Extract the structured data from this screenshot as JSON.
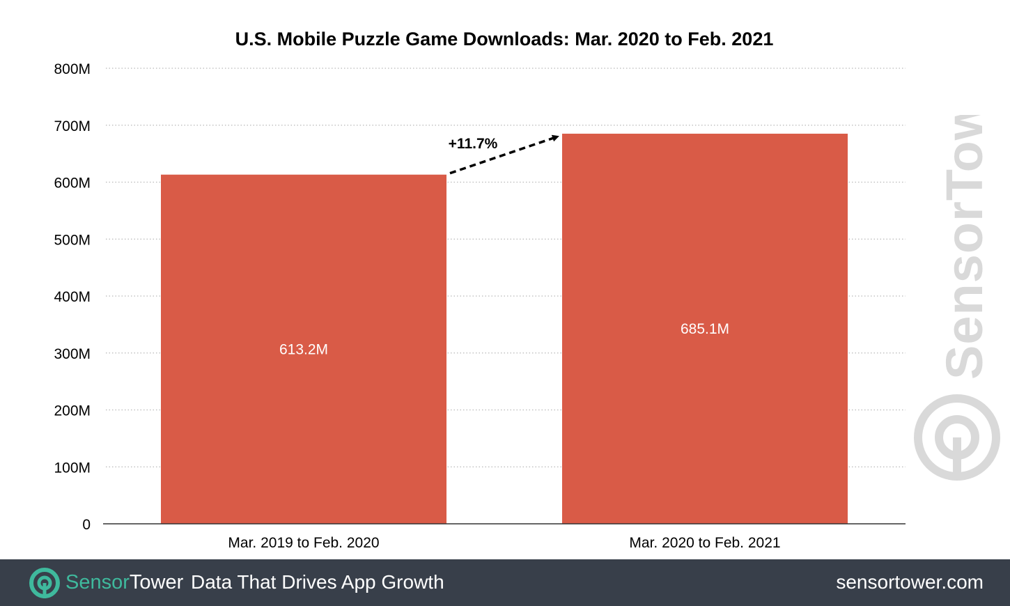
{
  "chart_data": {
    "type": "bar",
    "title": "U.S. Mobile Puzzle Game Downloads: Mar. 2020 to Feb. 2021",
    "categories": [
      "Mar. 2019 to Feb. 2020",
      "Mar. 2020 to Feb. 2021"
    ],
    "values": [
      613.2,
      685.1
    ],
    "value_labels": [
      "613.2M",
      "685.1M"
    ],
    "unit": "M",
    "ylim": [
      0,
      800
    ],
    "yticks": [
      0,
      100,
      200,
      300,
      400,
      500,
      600,
      700,
      800
    ],
    "ytick_labels": [
      "0",
      "100M",
      "200M",
      "300M",
      "400M",
      "500M",
      "600M",
      "700M",
      "800M"
    ],
    "grid": true,
    "bar_color": "#d95b47",
    "annotation": "+11.7%"
  },
  "watermark": {
    "brand": "SensorTower"
  },
  "footer": {
    "brand_part1": "Sensor",
    "brand_part2": "Tower",
    "tagline": "Data That Drives App Growth",
    "url": "sensortower.com",
    "bg_color": "#383f4a",
    "accent_color": "#3fb99d"
  }
}
